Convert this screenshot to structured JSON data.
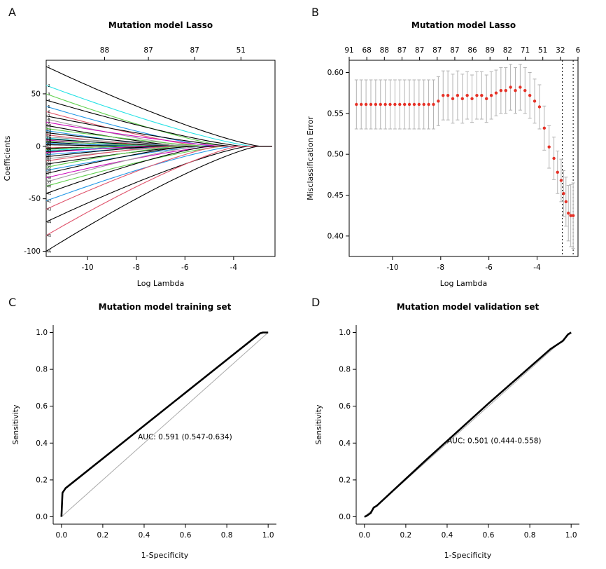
{
  "panels": [
    {
      "label": "A"
    },
    {
      "label": "B"
    },
    {
      "label": "C"
    },
    {
      "label": "D"
    }
  ],
  "colors": {
    "auc_text": "#2f4da8",
    "cv_point": "#e53126",
    "error_bar": "#b3b3b3",
    "diagonal": "#aaaaaa",
    "curve": "#000000",
    "axis": "#000000"
  },
  "chart_data": [
    {
      "type": "lasso_paths",
      "name": "lasso-coefficient-paths",
      "title": "Mutation model Lasso",
      "xlabel": "Log Lambda",
      "ylabel": "Coefficients",
      "xlim": [
        -11.7,
        -2.3
      ],
      "ylim": [
        -105,
        82
      ],
      "xticks": {
        "values": [
          -10,
          -8,
          -6,
          -4
        ],
        "labels": [
          "-10",
          "-8",
          "-6",
          "-4"
        ]
      },
      "yticks": {
        "values": [
          50,
          0,
          -50,
          -100
        ],
        "labels": [
          "50",
          "0",
          "-50",
          "-100"
        ]
      },
      "top_axis": {
        "values": [
          -9.3,
          -7.5,
          -5.6,
          -3.7
        ],
        "labels": [
          "88",
          "87",
          "87",
          "51"
        ]
      },
      "series": [
        {
          "y": 76,
          "z": -2.9,
          "c": "#000000"
        },
        {
          "y": 58,
          "z": -3.2,
          "c": "#28e2e5"
        },
        {
          "y": 50,
          "z": -4.2,
          "c": "#61d04f"
        },
        {
          "y": 44,
          "z": -3.6,
          "c": "#000000"
        },
        {
          "y": 38,
          "z": -4.8,
          "c": "#2297e6"
        },
        {
          "y": 33,
          "z": -5.2,
          "c": "#df536b"
        },
        {
          "y": 29,
          "z": -4.0,
          "c": "#000000"
        },
        {
          "y": 26,
          "z": -5.6,
          "c": "#9e9e9e"
        },
        {
          "y": 23,
          "z": -4.4,
          "c": "#cd0bbc"
        },
        {
          "y": 20,
          "z": -6.0,
          "c": "#000000"
        },
        {
          "y": 17,
          "z": -5.0,
          "c": "#61d04f"
        },
        {
          "y": 15,
          "z": -6.4,
          "c": "#2297e6"
        },
        {
          "y": 13,
          "z": -5.8,
          "c": "#000000"
        },
        {
          "y": 11,
          "z": -6.8,
          "c": "#df536b"
        },
        {
          "y": 9,
          "z": -5.4,
          "c": "#9e9e9e"
        },
        {
          "y": 8,
          "z": -7.2,
          "c": "#28e2e5"
        },
        {
          "y": 7,
          "z": -6.2,
          "c": "#000000"
        },
        {
          "y": 6,
          "z": -7.6,
          "c": "#cd0bbc"
        },
        {
          "y": 5,
          "z": -6.6,
          "c": "#61d04f"
        },
        {
          "y": 4,
          "z": -8.0,
          "c": "#000000"
        },
        {
          "y": 3,
          "z": -7.0,
          "c": "#2297e6"
        },
        {
          "y": 2,
          "z": -8.4,
          "c": "#9e9e9e"
        },
        {
          "y": 1.5,
          "z": -7.4,
          "c": "#000000"
        },
        {
          "y": -1.5,
          "z": -8.2,
          "c": "#df536b"
        },
        {
          "y": -2,
          "z": -7.8,
          "c": "#000000"
        },
        {
          "y": -3,
          "z": -8.6,
          "c": "#61d04f"
        },
        {
          "y": -4,
          "z": -7.2,
          "c": "#28e2e5"
        },
        {
          "y": -5,
          "z": -6.8,
          "c": "#000000"
        },
        {
          "y": -6,
          "z": -7.6,
          "c": "#cd0bbc"
        },
        {
          "y": -8,
          "z": -6.4,
          "c": "#2297e6"
        },
        {
          "y": -10,
          "z": -7.0,
          "c": "#000000"
        },
        {
          "y": -12,
          "z": -6.0,
          "c": "#9e9e9e"
        },
        {
          "y": -14,
          "z": -6.6,
          "c": "#df536b"
        },
        {
          "y": -17,
          "z": -5.6,
          "c": "#000000"
        },
        {
          "y": -20,
          "z": -6.2,
          "c": "#61d04f"
        },
        {
          "y": -23,
          "z": -5.2,
          "c": "#2297e6"
        },
        {
          "y": -26,
          "z": -5.8,
          "c": "#000000"
        },
        {
          "y": -30,
          "z": -4.8,
          "c": "#cd0bbc"
        },
        {
          "y": -34,
          "z": -5.4,
          "c": "#9e9e9e"
        },
        {
          "y": -38,
          "z": -4.4,
          "c": "#61d04f"
        },
        {
          "y": -45,
          "z": -5.0,
          "c": "#000000"
        },
        {
          "y": -52,
          "z": -4.0,
          "c": "#2297e6"
        },
        {
          "y": -60,
          "z": -4.6,
          "c": "#df536b"
        },
        {
          "y": -72,
          "z": -3.4,
          "c": "#000000"
        },
        {
          "y": -85,
          "z": -3.8,
          "c": "#df536b"
        },
        {
          "y": -100,
          "z": -3.0,
          "c": "#000000"
        }
      ]
    },
    {
      "type": "cv_error",
      "name": "cv-misclassification-error",
      "title": "Mutation model Lasso",
      "xlabel": "Log Lambda",
      "ylabel": "Misclassification Error",
      "xlim": [
        -11.8,
        -2.3
      ],
      "ylim": [
        0.375,
        0.615
      ],
      "xticks": {
        "values": [
          -10,
          -8,
          -6,
          -4
        ],
        "labels": [
          "-10",
          "-8",
          "-6",
          "-4"
        ]
      },
      "yticks": {
        "values": [
          0.4,
          0.45,
          0.5,
          0.55,
          0.6
        ],
        "labels": [
          "0.40",
          "0.45",
          "0.50",
          "0.55",
          "0.60"
        ]
      },
      "top_labels": [
        "91",
        "68",
        "88",
        "87",
        "87",
        "87",
        "87",
        "86",
        "89",
        "82",
        "71",
        "51",
        "32",
        "6"
      ],
      "vlines": [
        -2.95,
        -2.5
      ],
      "points": [
        [
          -11.5,
          0.561,
          0.03
        ],
        [
          -11.3,
          0.561,
          0.03
        ],
        [
          -11.1,
          0.561,
          0.03
        ],
        [
          -10.9,
          0.561,
          0.03
        ],
        [
          -10.7,
          0.561,
          0.03
        ],
        [
          -10.5,
          0.561,
          0.03
        ],
        [
          -10.3,
          0.561,
          0.03
        ],
        [
          -10.1,
          0.561,
          0.03
        ],
        [
          -9.9,
          0.561,
          0.03
        ],
        [
          -9.7,
          0.561,
          0.03
        ],
        [
          -9.5,
          0.561,
          0.03
        ],
        [
          -9.3,
          0.561,
          0.03
        ],
        [
          -9.1,
          0.561,
          0.03
        ],
        [
          -8.9,
          0.561,
          0.03
        ],
        [
          -8.7,
          0.561,
          0.03
        ],
        [
          -8.5,
          0.561,
          0.03
        ],
        [
          -8.3,
          0.561,
          0.03
        ],
        [
          -8.1,
          0.565,
          0.03
        ],
        [
          -7.9,
          0.572,
          0.03
        ],
        [
          -7.7,
          0.572,
          0.03
        ],
        [
          -7.5,
          0.568,
          0.03
        ],
        [
          -7.3,
          0.572,
          0.03
        ],
        [
          -7.1,
          0.568,
          0.03
        ],
        [
          -6.9,
          0.572,
          0.029
        ],
        [
          -6.7,
          0.568,
          0.029
        ],
        [
          -6.5,
          0.572,
          0.029
        ],
        [
          -6.3,
          0.572,
          0.029
        ],
        [
          -6.1,
          0.568,
          0.029
        ],
        [
          -5.9,
          0.572,
          0.029
        ],
        [
          -5.7,
          0.575,
          0.028
        ],
        [
          -5.5,
          0.578,
          0.028
        ],
        [
          -5.3,
          0.578,
          0.028
        ],
        [
          -5.1,
          0.582,
          0.028
        ],
        [
          -4.9,
          0.578,
          0.028
        ],
        [
          -4.7,
          0.582,
          0.028
        ],
        [
          -4.5,
          0.578,
          0.028
        ],
        [
          -4.3,
          0.572,
          0.028
        ],
        [
          -4.1,
          0.565,
          0.027
        ],
        [
          -3.9,
          0.558,
          0.027
        ],
        [
          -3.7,
          0.532,
          0.027
        ],
        [
          -3.5,
          0.509,
          0.026
        ],
        [
          -3.3,
          0.495,
          0.026
        ],
        [
          -3.15,
          0.478,
          0.026
        ],
        [
          -3.0,
          0.468,
          0.026
        ],
        [
          -2.9,
          0.452,
          0.028
        ],
        [
          -2.8,
          0.442,
          0.03
        ],
        [
          -2.7,
          0.428,
          0.034
        ],
        [
          -2.6,
          0.425,
          0.038
        ],
        [
          -2.5,
          0.425,
          0.04
        ]
      ]
    },
    {
      "type": "roc",
      "name": "roc-training-set",
      "title": "Mutation model training set",
      "xlabel": "1-Specificity",
      "ylabel": "Sensitivity",
      "xticks": {
        "values": [
          0,
          0.2,
          0.4,
          0.6,
          0.8,
          1
        ],
        "labels": [
          "0.0",
          "0.2",
          "0.4",
          "0.6",
          "0.8",
          "1.0"
        ]
      },
      "yticks": {
        "values": [
          0,
          0.2,
          0.4,
          0.6,
          0.8,
          1
        ],
        "labels": [
          "0.0",
          "0.2",
          "0.4",
          "0.6",
          "0.8",
          "1.0"
        ]
      },
      "auc": {
        "label": "AUC:  0.591 (0.547-0.634)",
        "x": 0.37,
        "y": 0.42
      },
      "curve": [
        [
          0,
          0
        ],
        [
          0.005,
          0.13
        ],
        [
          0.02,
          0.155
        ],
        [
          0.96,
          0.995
        ],
        [
          0.975,
          1
        ],
        [
          1,
          1
        ]
      ]
    },
    {
      "type": "roc",
      "name": "roc-validation-set",
      "title": "Mutation model validation set",
      "xlabel": "1-Specificity",
      "ylabel": "Sensitivity",
      "xticks": {
        "values": [
          0,
          0.2,
          0.4,
          0.6,
          0.8,
          1
        ],
        "labels": [
          "0.0",
          "0.2",
          "0.4",
          "0.6",
          "0.8",
          "1.0"
        ]
      },
      "yticks": {
        "values": [
          0,
          0.2,
          0.4,
          0.6,
          0.8,
          1
        ],
        "labels": [
          "0.0",
          "0.2",
          "0.4",
          "0.6",
          "0.8",
          "1.0"
        ]
      },
      "auc": {
        "label": "AUC:  0.501 (0.444-0.558)",
        "x": 0.4,
        "y": 0.4
      },
      "curve": [
        [
          0,
          0
        ],
        [
          0.01,
          0.005
        ],
        [
          0.03,
          0.02
        ],
        [
          0.045,
          0.05
        ],
        [
          0.06,
          0.06
        ],
        [
          0.3,
          0.31
        ],
        [
          0.6,
          0.615
        ],
        [
          0.9,
          0.91
        ],
        [
          0.96,
          0.955
        ],
        [
          0.985,
          0.99
        ],
        [
          1,
          1
        ]
      ]
    }
  ]
}
